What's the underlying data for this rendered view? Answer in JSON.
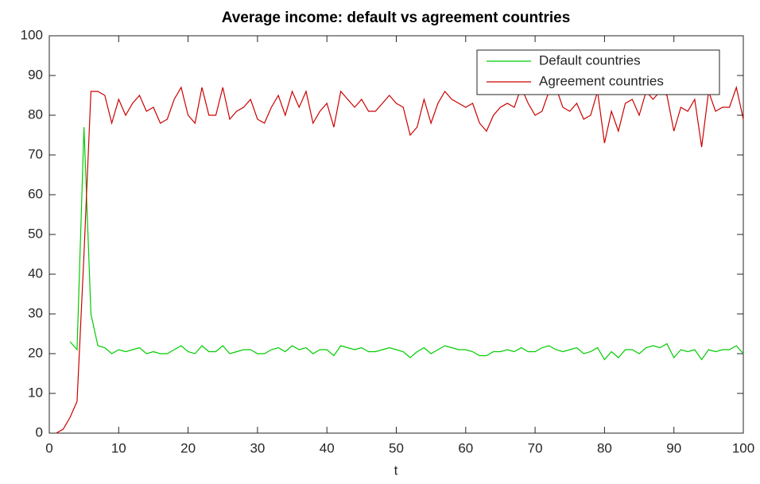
{
  "chart_data": {
    "type": "line",
    "title": "Average income: default vs agreement countries",
    "x_label": "t",
    "x": [
      1,
      2,
      3,
      4,
      5,
      6,
      7,
      8,
      9,
      10,
      11,
      12,
      13,
      14,
      15,
      16,
      17,
      18,
      19,
      20,
      21,
      22,
      23,
      24,
      25,
      26,
      27,
      28,
      29,
      30,
      31,
      32,
      33,
      34,
      35,
      36,
      37,
      38,
      39,
      40,
      41,
      42,
      43,
      44,
      45,
      46,
      47,
      48,
      49,
      50,
      51,
      52,
      53,
      54,
      55,
      56,
      57,
      58,
      59,
      60,
      61,
      62,
      63,
      64,
      65,
      66,
      67,
      68,
      69,
      70,
      71,
      72,
      73,
      74,
      75,
      76,
      77,
      78,
      79,
      80,
      81,
      82,
      83,
      84,
      85,
      86,
      87,
      88,
      89,
      90,
      91,
      92,
      93,
      94,
      95,
      96,
      97,
      98,
      99,
      100
    ],
    "series": [
      {
        "name": "Default countries",
        "color": "#00cc00",
        "values": [
          null,
          null,
          23,
          21,
          77,
          30,
          22,
          21.5,
          20,
          21,
          20.5,
          21,
          21.5,
          20,
          20.5,
          20,
          20,
          21,
          22,
          20.5,
          20,
          22,
          20.5,
          20.5,
          22,
          20,
          20.5,
          21,
          21,
          20,
          20,
          21,
          21.5,
          20.5,
          22,
          21,
          21.5,
          20,
          21,
          21,
          19.5,
          22,
          21.5,
          21,
          21.5,
          20.5,
          20.5,
          21,
          21.5,
          21,
          20.5,
          19,
          20.5,
          21.5,
          20,
          21,
          22,
          21.5,
          21,
          21,
          20.5,
          19.5,
          19.5,
          20.5,
          20.5,
          21,
          20.5,
          21.5,
          20.5,
          20.5,
          21.5,
          22,
          21,
          20.5,
          21,
          21.5,
          20,
          20.5,
          21.5,
          18.5,
          20.5,
          19,
          21,
          21,
          20,
          21.5,
          22,
          21.5,
          22.5,
          19,
          21,
          20.5,
          21,
          18.5,
          21,
          20.5,
          21,
          21,
          22,
          20
        ]
      },
      {
        "name": "Agreement countries",
        "color": "#cc0000",
        "values": [
          0,
          1,
          4,
          8,
          45,
          86,
          86,
          85,
          78,
          84,
          80,
          83,
          85,
          81,
          82,
          78,
          79,
          84,
          87,
          80,
          78,
          87,
          80,
          80,
          87,
          79,
          81,
          82,
          84,
          79,
          78,
          82,
          85,
          80,
          86,
          82,
          86,
          78,
          81,
          83,
          77,
          86,
          84,
          82,
          84,
          81,
          81,
          83,
          85,
          83,
          82,
          75,
          77,
          84,
          78,
          83,
          86,
          84,
          83,
          82,
          83,
          78,
          76,
          80,
          82,
          83,
          82,
          87,
          83,
          80,
          81,
          86,
          87,
          82,
          81,
          83,
          79,
          80,
          86,
          73,
          81,
          76,
          83,
          84,
          80,
          86,
          84,
          86,
          85,
          76,
          82,
          81,
          84,
          72,
          86,
          81,
          82,
          82,
          87,
          79
        ]
      }
    ],
    "xlim": [
      0,
      100
    ],
    "xticks": [
      0,
      10,
      20,
      30,
      40,
      50,
      60,
      70,
      80,
      90,
      100
    ],
    "ylim": [
      0,
      100
    ],
    "yticks": [
      0,
      10,
      20,
      30,
      40,
      50,
      60,
      70,
      80,
      90,
      100
    ],
    "legend": "top-right"
  }
}
